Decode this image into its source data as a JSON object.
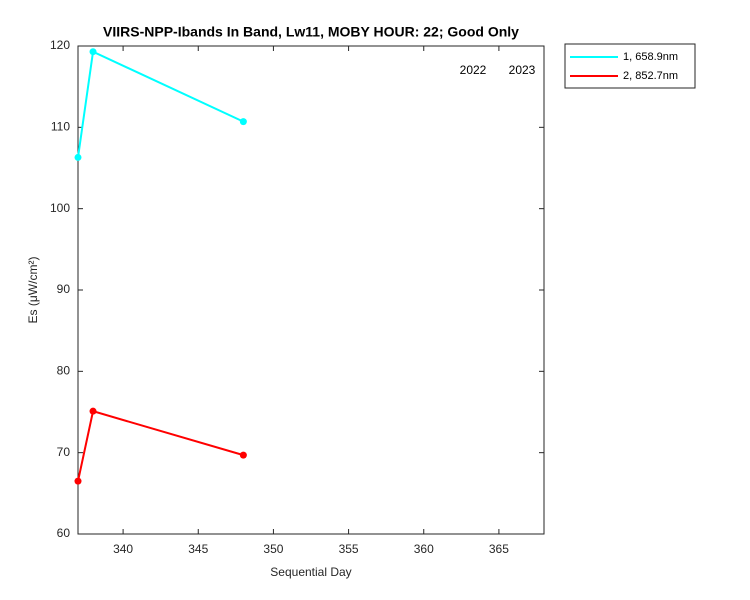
{
  "chart_data": {
    "type": "line",
    "title": "VIIRS-NPP-Ibands In Band,  Lw11, MOBY HOUR: 22;  Good Only",
    "x_label": "Sequential Day",
    "y_label": "Es (μW/cm²)",
    "x": [
      337,
      338,
      348
    ],
    "series": [
      {
        "name": "1, 658.9nm",
        "color": "#00ffff",
        "values": [
          106.3,
          119.3,
          110.7
        ]
      },
      {
        "name": "2, 852.7nm",
        "color": "#ff0000",
        "values": [
          66.5,
          75.1,
          69.7
        ]
      }
    ],
    "annotations": [
      "2022",
      "2023"
    ],
    "xlim": [
      337,
      368
    ],
    "xticks": [
      340,
      345,
      350,
      355,
      360,
      365
    ],
    "ylim": [
      60,
      120
    ],
    "yticks": [
      60,
      70,
      80,
      90,
      100,
      110,
      120
    ],
    "legend": "outside-top-right",
    "grid": false
  }
}
